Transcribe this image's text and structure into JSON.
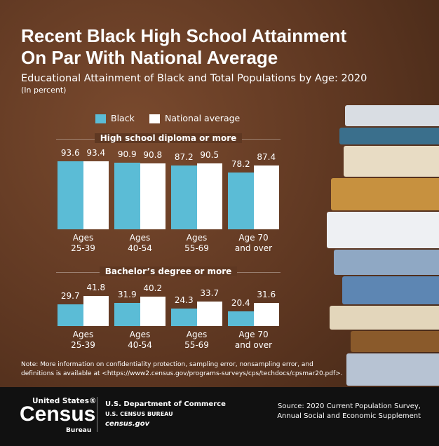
{
  "title": "Recent Black High School Attainment\nOn Par With National Average",
  "subtitle": "Educational Attainment of Black and Total Populations by Age: 2020",
  "unit_note": "(In percent)",
  "chart_data": [
    {
      "type": "bar",
      "title": "High school diploma or more",
      "categories": [
        "Ages\n25-39",
        "Ages\n40-54",
        "Ages\n55-69",
        "Age 70\nand over"
      ],
      "series": [
        {
          "name": "Black",
          "color": "#5bbcd6",
          "values": [
            93.6,
            90.9,
            87.2,
            78.2
          ]
        },
        {
          "name": "National average",
          "color": "#ffffff",
          "values": [
            93.4,
            90.8,
            90.5,
            87.4
          ]
        }
      ]
    },
    {
      "type": "bar",
      "title": "Bachelor’s degree or more",
      "categories": [
        "Ages\n25-39",
        "Ages\n40-54",
        "Ages\n55-69",
        "Age 70\nand over"
      ],
      "series": [
        {
          "name": "Black",
          "color": "#5bbcd6",
          "values": [
            29.7,
            31.9,
            24.3,
            20.4
          ]
        },
        {
          "name": "National average",
          "color": "#ffffff",
          "values": [
            41.8,
            40.2,
            33.7,
            31.6
          ]
        }
      ]
    }
  ],
  "note": "Note: More information on confidentiality protection, sampling error, nonsampling error, and\ndefinitions is available at <https://www2.census.gov/programs-surveys/cps/techdocs/cpsmar20.pdf>.",
  "footer": {
    "logo_top": "United States®",
    "logo_main": "Census",
    "logo_bottom": "Bureau",
    "department": "U.S. Department of Commerce",
    "bureau": "U.S. CENSUS BUREAU",
    "website": "census.gov",
    "source": "Source: 2020 Current Population Survey,\nAnnual Social and Economic Supplement"
  }
}
